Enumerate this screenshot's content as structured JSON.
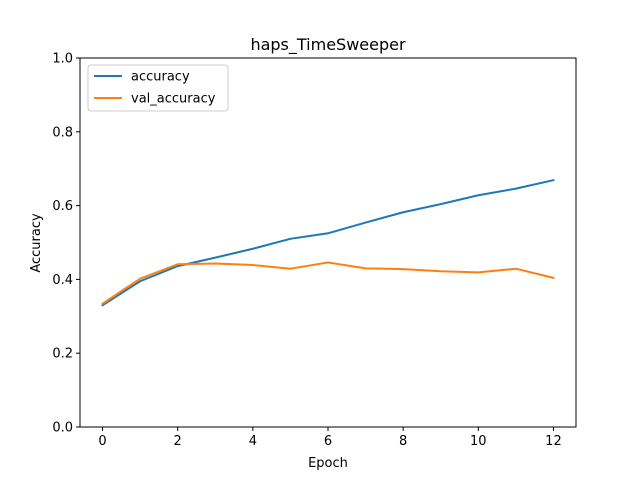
{
  "chart_data": {
    "type": "line",
    "title": "haps_TimeSweeper",
    "xlabel": "Epoch",
    "ylabel": "Accuracy",
    "xlim": [
      -0.6,
      12.6
    ],
    "ylim": [
      0.0,
      1.0
    ],
    "x": [
      0,
      1,
      2,
      3,
      4,
      5,
      6,
      7,
      8,
      9,
      10,
      11,
      12
    ],
    "xticks": [
      0,
      2,
      4,
      6,
      8,
      10,
      12
    ],
    "xtick_labels": [
      "0",
      "2",
      "4",
      "6",
      "8",
      "10",
      "12"
    ],
    "yticks": [
      0.0,
      0.2,
      0.4,
      0.6,
      0.8,
      1.0
    ],
    "ytick_labels": [
      "0.0",
      "0.2",
      "0.4",
      "0.6",
      "0.8",
      "1.0"
    ],
    "grid": false,
    "legend_position": "top-left",
    "series": [
      {
        "name": "accuracy",
        "color": "#1f77b4",
        "values": [
          0.33,
          0.395,
          0.436,
          0.459,
          0.483,
          0.51,
          0.525,
          0.554,
          0.582,
          0.604,
          0.628,
          0.646,
          0.669
        ]
      },
      {
        "name": "val_accuracy",
        "color": "#ff7f0e",
        "values": [
          0.334,
          0.402,
          0.441,
          0.443,
          0.439,
          0.429,
          0.446,
          0.43,
          0.428,
          0.422,
          0.419,
          0.429,
          0.404
        ]
      }
    ]
  }
}
